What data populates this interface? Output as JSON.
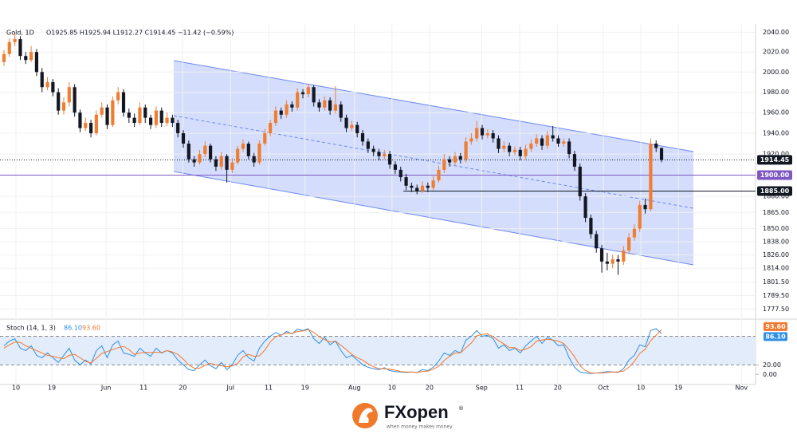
{
  "header": {
    "symbol": "Gold, 1D",
    "ohlc_text": "O1925.85 H1925.94 L1912.27 C1914.45 −11.42 (−0.59%)"
  },
  "brand": {
    "name": "FXopen",
    "tagline": "when money makes money",
    "mark": "®"
  },
  "chart_data": [
    {
      "type": "candlestick",
      "log_scale": true,
      "grid": true,
      "up_color": "#ef7d32",
      "down_color": "#131722",
      "ylim": [
        1770,
        2046
      ],
      "yticks": [
        {
          "value": 2040,
          "label": "2040.00"
        },
        {
          "value": 2020,
          "label": "2020.00"
        },
        {
          "value": 2000,
          "label": "2000.00"
        },
        {
          "value": 1980,
          "label": "1980.00"
        },
        {
          "value": 1960,
          "label": "1960.00"
        },
        {
          "value": 1940,
          "label": "1940.00"
        },
        {
          "value": 1920,
          "label": "1920.00"
        },
        {
          "value": 1880,
          "label": "1880.00"
        },
        {
          "value": 1865,
          "label": "1865.00"
        },
        {
          "value": 1850,
          "label": "1850.00"
        },
        {
          "value": 1838,
          "label": "1838.00"
        },
        {
          "value": 1826,
          "label": "1826.00"
        },
        {
          "value": 1814,
          "label": "1814.00"
        },
        {
          "value": 1801.5,
          "label": "1801.50"
        },
        {
          "value": 1789.5,
          "label": "1789.50"
        },
        {
          "value": 1777.5,
          "label": "1777.50"
        }
      ],
      "xlim": [
        -0.733,
        138.3
      ],
      "xticks": [
        {
          "value": 2.2,
          "label": "10"
        },
        {
          "value": 8.8,
          "label": "19"
        },
        {
          "value": 18.8,
          "label": "Jun"
        },
        {
          "value": 25.7,
          "label": "11"
        },
        {
          "value": 32.9,
          "label": "20"
        },
        {
          "value": 41.7,
          "label": "Jul"
        },
        {
          "value": 48.7,
          "label": "11"
        },
        {
          "value": 55.4,
          "label": "19"
        },
        {
          "value": 64.5,
          "label": "Aug"
        },
        {
          "value": 71.4,
          "label": "10"
        },
        {
          "value": 78.3,
          "label": "20"
        },
        {
          "value": 87.9,
          "label": "Sep"
        },
        {
          "value": 94.9,
          "label": "11"
        },
        {
          "value": 101.9,
          "label": "20"
        },
        {
          "value": 110.3,
          "label": "Oct"
        },
        {
          "value": 117.2,
          "label": "10"
        },
        {
          "value": 124.1,
          "label": "19"
        },
        {
          "value": 135.7,
          "label": "Nov"
        }
      ],
      "levels": [
        {
          "value": 1914.45,
          "label": "1914.45",
          "color": "#131722",
          "style": "dotted"
        },
        {
          "value": 1900,
          "label": "1900.00",
          "color": "#7e57c2",
          "style": "solid"
        },
        {
          "value": 1885,
          "label": "1885.00",
          "color": "#131722",
          "style": "solid",
          "x_start": 73.5
        }
      ],
      "ohlc": [
        [
          2010,
          2022,
          2006,
          2018
        ],
        [
          2018,
          2034,
          2015,
          2030
        ],
        [
          2030,
          2040,
          2026,
          2033
        ],
        [
          2033,
          2036,
          2012,
          2016
        ],
        [
          2016,
          2020,
          2008,
          2012
        ],
        [
          2012,
          2026,
          2010,
          2020
        ],
        [
          2020,
          2023,
          1996,
          2000
        ],
        [
          2000,
          2004,
          1980,
          1985
        ],
        [
          1985,
          1995,
          1982,
          1990
        ],
        [
          1990,
          1993,
          1976,
          1980
        ],
        [
          1980,
          1984,
          1958,
          1962
        ],
        [
          1962,
          1975,
          1958,
          1970
        ],
        [
          1970,
          1990,
          1966,
          1985
        ],
        [
          1985,
          1988,
          1956,
          1960
        ],
        [
          1960,
          1963,
          1941,
          1945
        ],
        [
          1945,
          1955,
          1942,
          1950
        ],
        [
          1950,
          1953,
          1936,
          1940
        ],
        [
          1940,
          1962,
          1938,
          1958
        ],
        [
          1958,
          1970,
          1955,
          1965
        ],
        [
          1965,
          1968,
          1944,
          1948
        ],
        [
          1948,
          1976,
          1946,
          1972
        ],
        [
          1972,
          1985,
          1968,
          1980
        ],
        [
          1980,
          1983,
          1956,
          1960
        ],
        [
          1960,
          1964,
          1950,
          1955
        ],
        [
          1955,
          1959,
          1946,
          1950
        ],
        [
          1950,
          1970,
          1948,
          1965
        ],
        [
          1965,
          1968,
          1950,
          1955
        ],
        [
          1955,
          1958,
          1944,
          1948
        ],
        [
          1948,
          1966,
          1945,
          1962
        ],
        [
          1962,
          1965,
          1946,
          1950
        ],
        [
          1950,
          1960,
          1947,
          1955
        ],
        [
          1955,
          1958,
          1946,
          1950
        ],
        [
          1950,
          1953,
          1936,
          1940
        ],
        [
          1940,
          1943,
          1926,
          1930
        ],
        [
          1930,
          1933,
          1912,
          1915
        ],
        [
          1915,
          1918,
          1908,
          1912
        ],
        [
          1912,
          1924,
          1910,
          1920
        ],
        [
          1920,
          1932,
          1917,
          1928
        ],
        [
          1928,
          1930,
          1912,
          1915
        ],
        [
          1915,
          1918,
          1904,
          1908
        ],
        [
          1908,
          1922,
          1905,
          1918
        ],
        [
          1918,
          1920,
          1893,
          1905
        ],
        [
          1905,
          1916,
          1902,
          1912
        ],
        [
          1912,
          1928,
          1910,
          1925
        ],
        [
          1925,
          1934,
          1922,
          1930
        ],
        [
          1930,
          1932,
          1915,
          1918
        ],
        [
          1918,
          1921,
          1908,
          1912
        ],
        [
          1912,
          1933,
          1910,
          1930
        ],
        [
          1930,
          1944,
          1928,
          1940
        ],
        [
          1940,
          1953,
          1937,
          1950
        ],
        [
          1950,
          1966,
          1947,
          1962
        ],
        [
          1962,
          1965,
          1954,
          1958
        ],
        [
          1958,
          1972,
          1955,
          1968
        ],
        [
          1968,
          1971,
          1961,
          1965
        ],
        [
          1965,
          1984,
          1962,
          1980
        ],
        [
          1980,
          1983,
          1974,
          1978
        ],
        [
          1978,
          1988,
          1975,
          1985
        ],
        [
          1985,
          1987,
          1966,
          1970
        ],
        [
          1970,
          1973,
          1961,
          1965
        ],
        [
          1965,
          1976,
          1962,
          1972
        ],
        [
          1972,
          1975,
          1958,
          1962
        ],
        [
          1962,
          1986,
          1959,
          1968
        ],
        [
          1968,
          1971,
          1951,
          1955
        ],
        [
          1955,
          1958,
          1941,
          1945
        ],
        [
          1945,
          1952,
          1942,
          1948
        ],
        [
          1948,
          1951,
          1936,
          1940
        ],
        [
          1940,
          1943,
          1928,
          1932
        ],
        [
          1932,
          1935,
          1921,
          1925
        ],
        [
          1925,
          1928,
          1918,
          1922
        ],
        [
          1922,
          1925,
          1914,
          1918
        ],
        [
          1918,
          1924,
          1915,
          1920
        ],
        [
          1920,
          1923,
          1906,
          1910
        ],
        [
          1910,
          1913,
          1901,
          1905
        ],
        [
          1905,
          1908,
          1894,
          1898
        ],
        [
          1898,
          1901,
          1886,
          1890
        ],
        [
          1890,
          1893,
          1884,
          1888
        ],
        [
          1888,
          1891,
          1882,
          1885
        ],
        [
          1885,
          1894,
          1883,
          1890
        ],
        [
          1890,
          1893,
          1884,
          1888
        ],
        [
          1888,
          1899,
          1886,
          1895
        ],
        [
          1895,
          1909,
          1893,
          1905
        ],
        [
          1905,
          1920,
          1902,
          1915
        ],
        [
          1915,
          1918,
          1908,
          1912
        ],
        [
          1912,
          1922,
          1909,
          1918
        ],
        [
          1918,
          1921,
          1911,
          1915
        ],
        [
          1915,
          1936,
          1912,
          1932
        ],
        [
          1932,
          1940,
          1929,
          1935
        ],
        [
          1935,
          1952,
          1932,
          1945
        ],
        [
          1945,
          1948,
          1934,
          1938
        ],
        [
          1938,
          1944,
          1935,
          1940
        ],
        [
          1940,
          1943,
          1931,
          1935
        ],
        [
          1935,
          1938,
          1921,
          1925
        ],
        [
          1925,
          1932,
          1922,
          1928
        ],
        [
          1928,
          1931,
          1918,
          1922
        ],
        [
          1922,
          1927,
          1919,
          1924
        ],
        [
          1924,
          1927,
          1914,
          1918
        ],
        [
          1918,
          1929,
          1915,
          1925
        ],
        [
          1925,
          1934,
          1922,
          1930
        ],
        [
          1930,
          1939,
          1927,
          1935
        ],
        [
          1935,
          1938,
          1924,
          1928
        ],
        [
          1928,
          1942,
          1925,
          1938
        ],
        [
          1938,
          1947,
          1932,
          1935
        ],
        [
          1935,
          1938,
          1927,
          1930
        ],
        [
          1930,
          1935,
          1927,
          1932
        ],
        [
          1932,
          1935,
          1916,
          1920
        ],
        [
          1920,
          1923,
          1904,
          1908
        ],
        [
          1908,
          1911,
          1876,
          1880
        ],
        [
          1880,
          1883,
          1856,
          1860
        ],
        [
          1860,
          1863,
          1841,
          1845
        ],
        [
          1845,
          1848,
          1828,
          1832
        ],
        [
          1832,
          1835,
          1810,
          1820
        ],
        [
          1820,
          1828,
          1812,
          1818
        ],
        [
          1818,
          1826,
          1814,
          1822
        ],
        [
          1822,
          1826,
          1808,
          1820
        ],
        [
          1820,
          1834,
          1817,
          1830
        ],
        [
          1830,
          1846,
          1827,
          1842
        ],
        [
          1842,
          1854,
          1839,
          1850
        ],
        [
          1850,
          1876,
          1847,
          1872
        ],
        [
          1872,
          1878,
          1864,
          1868
        ],
        [
          1868,
          1935,
          1866,
          1930
        ],
        [
          1930,
          1933,
          1922,
          1925.85
        ],
        [
          1925.85,
          1925.94,
          1912.27,
          1914.45
        ]
      ]
    },
    {
      "type": "line",
      "title": "Stoch (14, 1, 3)",
      "xlim": [
        -0.733,
        138.3
      ],
      "ylim": [
        -18,
        111
      ],
      "yticks": [
        {
          "value": 0,
          "label": "0.00"
        },
        {
          "value": 20,
          "label": "20.00"
        }
      ],
      "band": [
        20,
        80
      ],
      "band_color": "#e3ecfb",
      "series": [
        {
          "color": "#2f8fe6",
          "last_label": "86.10",
          "values": [
            60,
            70,
            75,
            55,
            50,
            60,
            40,
            35,
            45,
            35,
            25,
            40,
            55,
            30,
            20,
            30,
            22,
            50,
            60,
            35,
            62,
            70,
            45,
            42,
            38,
            55,
            45,
            38,
            55,
            45,
            50,
            45,
            30,
            20,
            10,
            8,
            20,
            30,
            18,
            12,
            25,
            10,
            20,
            40,
            50,
            35,
            28,
            55,
            70,
            80,
            88,
            82,
            90,
            85,
            95,
            92,
            96,
            75,
            65,
            78,
            62,
            70,
            50,
            35,
            40,
            30,
            20,
            15,
            12,
            10,
            14,
            8,
            6,
            5,
            4,
            5,
            4,
            10,
            8,
            15,
            28,
            45,
            40,
            50,
            45,
            72,
            80,
            92,
            80,
            82,
            75,
            55,
            62,
            50,
            55,
            45,
            60,
            70,
            80,
            65,
            78,
            72,
            60,
            62,
            35,
            15,
            5,
            3,
            2,
            3,
            4,
            6,
            5,
            4,
            12,
            30,
            40,
            62,
            58,
            92,
            96,
            86.1
          ]
        },
        {
          "color": "#f2782b",
          "last_label": "93.60",
          "values": [
            55,
            62,
            68,
            67,
            60,
            55,
            50,
            45,
            40,
            38,
            35,
            33,
            40,
            42,
            35,
            27,
            24,
            34,
            44,
            48,
            52,
            56,
            59,
            52,
            42,
            45,
            46,
            46,
            46,
            46,
            50,
            47,
            42,
            32,
            20,
            13,
            13,
            19,
            23,
            20,
            18,
            16,
            18,
            23,
            37,
            42,
            38,
            39,
            51,
            68,
            79,
            83,
            87,
            86,
            90,
            91,
            94,
            88,
            79,
            73,
            68,
            70,
            61,
            52,
            42,
            35,
            30,
            22,
            16,
            12,
            12,
            11,
            9,
            6,
            5,
            5,
            4,
            6,
            7,
            11,
            17,
            29,
            38,
            45,
            45,
            56,
            66,
            81,
            84,
            85,
            79,
            71,
            64,
            56,
            56,
            50,
            53,
            58,
            70,
            72,
            74,
            72,
            70,
            65,
            52,
            37,
            18,
            8,
            3,
            3,
            3,
            4,
            5,
            5,
            7,
            15,
            27,
            44,
            53,
            71,
            82,
            93.6
          ]
        }
      ]
    }
  ]
}
